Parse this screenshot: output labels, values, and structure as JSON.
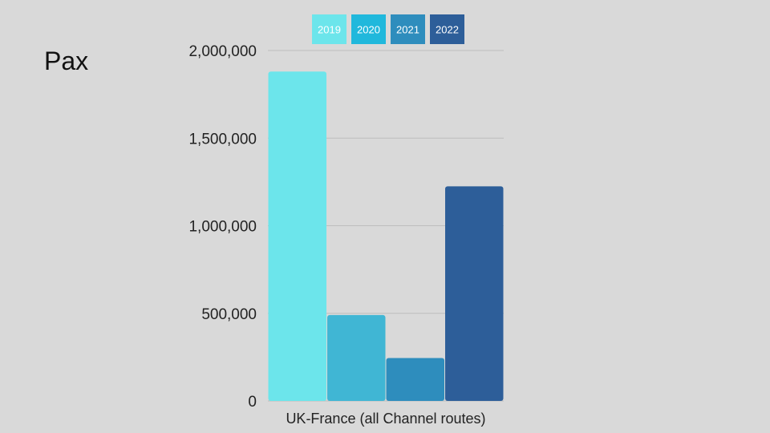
{
  "page": {
    "title": "Pax"
  },
  "chart_data": {
    "type": "bar",
    "categories": [
      "UK-France (all Channel routes)"
    ],
    "series": [
      {
        "name": "2019",
        "values": [
          1880000
        ],
        "color": "#6ce5eb"
      },
      {
        "name": "2020",
        "values": [
          490000
        ],
        "color": "#40b6d4"
      },
      {
        "name": "2021",
        "values": [
          245000
        ],
        "color": "#2e8dbd"
      },
      {
        "name": "2022",
        "values": [
          1225000
        ],
        "color": "#2d5e99"
      }
    ],
    "legend_colors": [
      "#6ce5eb",
      "#20b8dc",
      "#2e8dbd",
      "#2d5e99"
    ],
    "yticks": [
      {
        "value": 0,
        "label": "0"
      },
      {
        "value": 500000,
        "label": "500,000"
      },
      {
        "value": 1000000,
        "label": "1,000,000"
      },
      {
        "value": 1500000,
        "label": "1,500,000"
      },
      {
        "value": 2000000,
        "label": "2,000,000"
      }
    ],
    "ylim": [
      0,
      2000000
    ],
    "grid": true,
    "legend_position": "top",
    "xlabel": "",
    "ylabel": ""
  }
}
